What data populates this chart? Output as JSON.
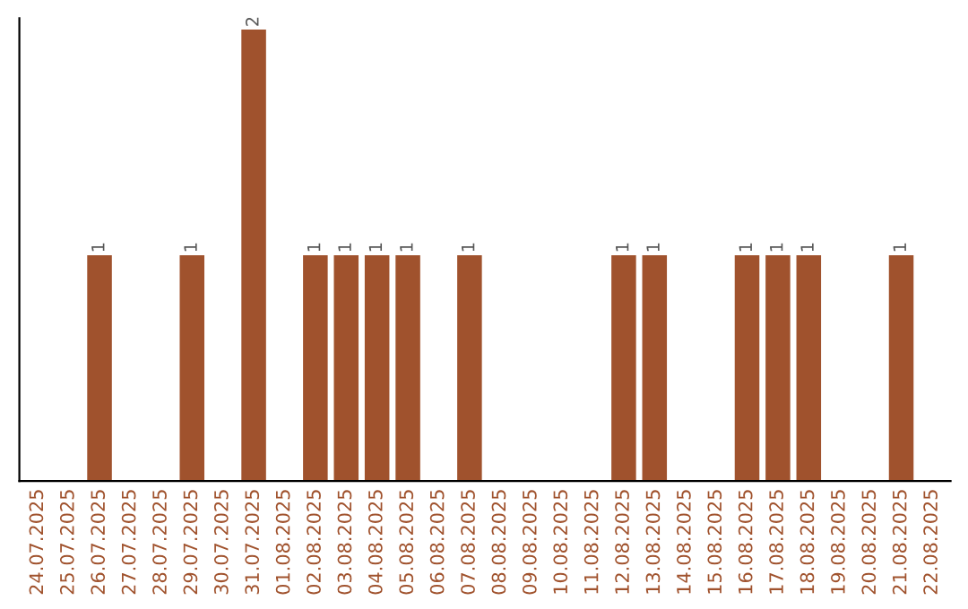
{
  "chart_data": {
    "type": "bar",
    "categories": [
      "24.07.2025",
      "25.07.2025",
      "26.07.2025",
      "27.07.2025",
      "28.07.2025",
      "29.07.2025",
      "30.07.2025",
      "31.07.2025",
      "01.08.2025",
      "02.08.2025",
      "03.08.2025",
      "04.08.2025",
      "05.08.2025",
      "06.08.2025",
      "07.08.2025",
      "08.08.2025",
      "09.08.2025",
      "10.08.2025",
      "11.08.2025",
      "12.08.2025",
      "13.08.2025",
      "14.08.2025",
      "15.08.2025",
      "16.08.2025",
      "17.08.2025",
      "18.08.2025",
      "19.08.2025",
      "20.08.2025",
      "21.08.2025",
      "22.08.2025"
    ],
    "values": [
      0,
      0,
      1,
      0,
      0,
      1,
      0,
      2,
      0,
      1,
      1,
      1,
      1,
      0,
      1,
      0,
      0,
      0,
      0,
      1,
      1,
      0,
      0,
      1,
      1,
      1,
      0,
      0,
      1,
      0
    ],
    "value_labels": [
      null,
      null,
      "1",
      null,
      null,
      "1",
      null,
      "2",
      null,
      "1",
      "1",
      "1",
      "1",
      null,
      "1",
      null,
      null,
      null,
      null,
      "1",
      "1",
      null,
      null,
      "1",
      "1",
      "1",
      null,
      null,
      "1",
      null
    ],
    "color": "#a0522d",
    "ylim": [
      0,
      2.05
    ],
    "grid": false,
    "legend": false
  }
}
